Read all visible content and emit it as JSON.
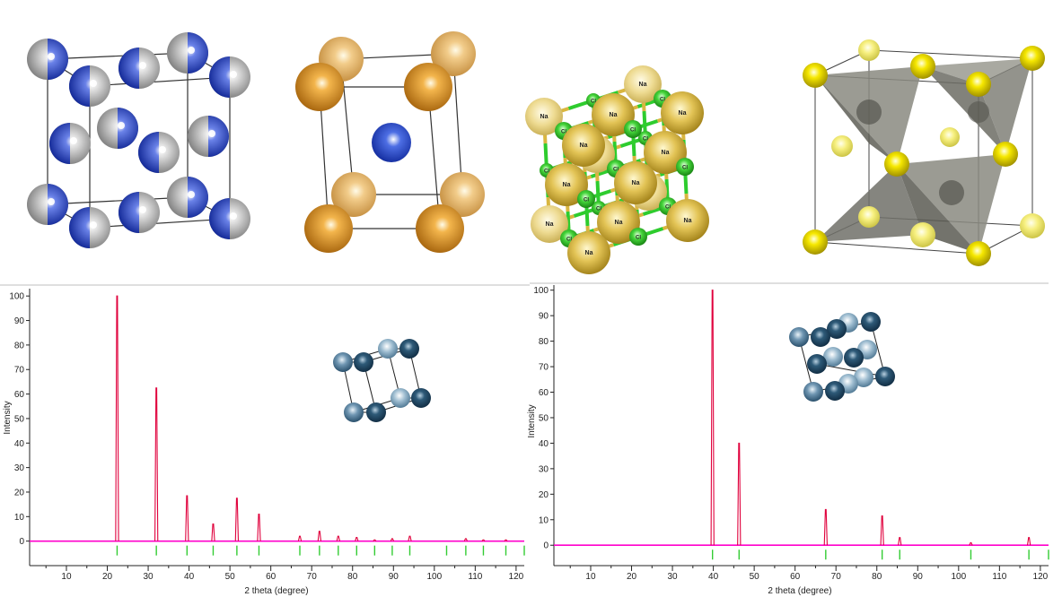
{
  "structures": {
    "bcc_unit_cell": {
      "atom_color": "#1f3fbf",
      "atom_shade": "#c8c8c8"
    },
    "cscl_unit_cell": {
      "corner_color": "#e39a2a",
      "center_color": "#2440c8"
    },
    "nacl_lattice": {
      "na_label": "Na",
      "cl_label": "Cl",
      "na_color": "#e6c040",
      "cl_color": "#33cc33"
    },
    "tetrahedral_cell": {
      "atom_color": "#f2e000",
      "polyhedron_color": "#7a7a70"
    }
  },
  "chart_data": [
    {
      "type": "line",
      "xlabel": "2 theta (degree)",
      "ylabel": "Intensity",
      "xlim": [
        1,
        122
      ],
      "ylim": [
        -10,
        103
      ],
      "xticks": [
        10,
        20,
        30,
        40,
        50,
        60,
        70,
        80,
        90,
        100,
        110,
        120
      ],
      "yticks": [
        0,
        10,
        20,
        30,
        40,
        50,
        60,
        70,
        80,
        90,
        100
      ],
      "grid": false,
      "line_color": "#e0003c",
      "baseline_color": "#ff00cc",
      "marker_color": "#33cc33",
      "peaks": [
        {
          "x": 22.4,
          "y": 100
        },
        {
          "x": 32.0,
          "y": 62.5
        },
        {
          "x": 39.5,
          "y": 18.5
        },
        {
          "x": 45.9,
          "y": 7.0
        },
        {
          "x": 51.7,
          "y": 17.5
        },
        {
          "x": 57.1,
          "y": 11.0
        },
        {
          "x": 67.1,
          "y": 2.0
        },
        {
          "x": 71.9,
          "y": 4.0
        },
        {
          "x": 76.5,
          "y": 2.0
        },
        {
          "x": 81.0,
          "y": 1.5
        },
        {
          "x": 85.4,
          "y": 0.5
        },
        {
          "x": 89.7,
          "y": 1.0
        },
        {
          "x": 94.0,
          "y": 2.0
        },
        {
          "x": 107.7,
          "y": 1.0
        },
        {
          "x": 112.0,
          "y": 0.5
        },
        {
          "x": 117.5,
          "y": 0.5
        }
      ],
      "reflection_markers": [
        22.4,
        32.0,
        39.5,
        45.9,
        51.7,
        57.1,
        67.1,
        71.9,
        76.5,
        81.0,
        85.4,
        89.7,
        94.0,
        103.0,
        107.7,
        112.0,
        117.5,
        122.0
      ]
    },
    {
      "type": "line",
      "xlabel": "2 theta (degree)",
      "ylabel": "Intensity",
      "xlim": [
        1,
        122
      ],
      "ylim": [
        -8,
        102
      ],
      "xticks": [
        10,
        20,
        30,
        40,
        50,
        60,
        70,
        80,
        90,
        100,
        110,
        120
      ],
      "yticks": [
        0,
        10,
        20,
        30,
        40,
        50,
        60,
        70,
        80,
        90,
        100
      ],
      "grid": false,
      "line_color": "#e0003c",
      "baseline_color": "#ff00cc",
      "marker_color": "#33cc33",
      "peaks": [
        {
          "x": 39.8,
          "y": 100
        },
        {
          "x": 46.3,
          "y": 40
        },
        {
          "x": 67.5,
          "y": 14
        },
        {
          "x": 81.3,
          "y": 11.5
        },
        {
          "x": 85.6,
          "y": 3.0
        },
        {
          "x": 103.0,
          "y": 1.0
        },
        {
          "x": 117.2,
          "y": 3.0
        }
      ],
      "reflection_markers": [
        39.8,
        46.3,
        67.5,
        81.3,
        85.6,
        103.0,
        117.2,
        122.0
      ]
    }
  ]
}
